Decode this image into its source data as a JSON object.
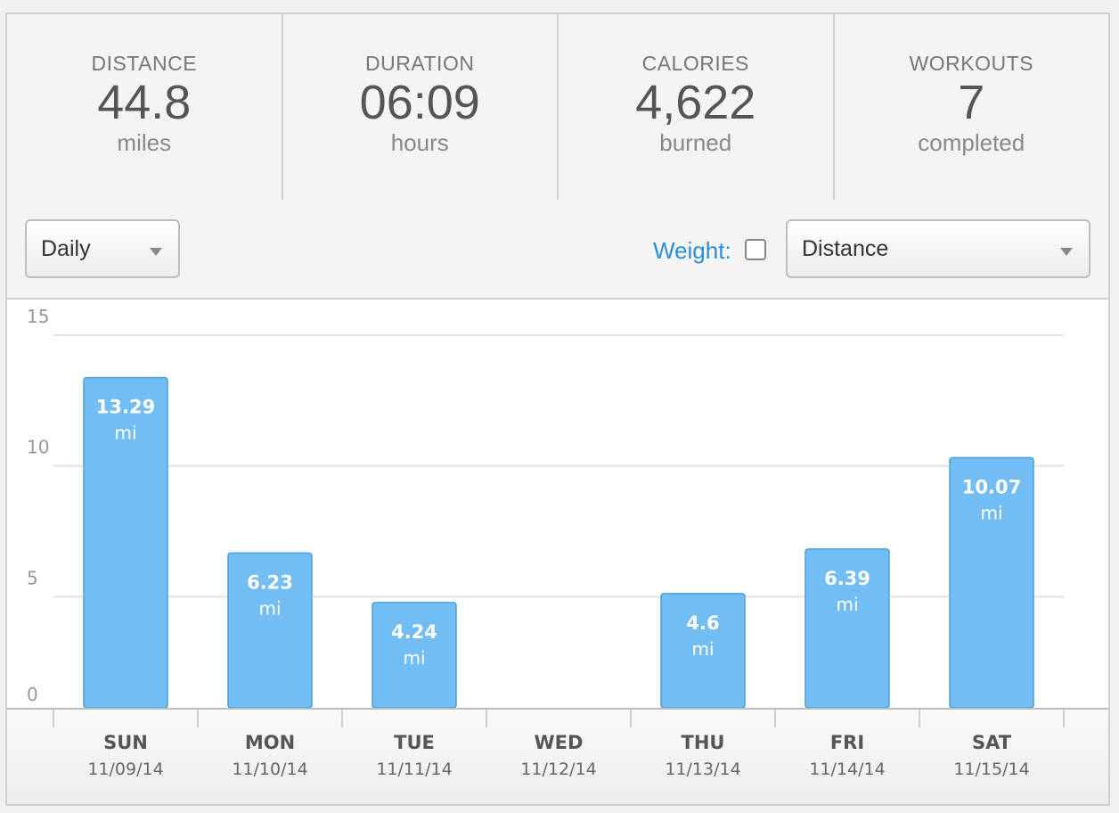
{
  "stats": [
    {
      "label": "DISTANCE",
      "value": "44.8",
      "unit": "miles"
    },
    {
      "label": "DURATION",
      "value": "06:09",
      "unit": "hours"
    },
    {
      "label": "CALORIES",
      "value": "4,622",
      "unit": "burned"
    },
    {
      "label": "WORKOUTS",
      "value": "7",
      "unit": "completed"
    }
  ],
  "controls": {
    "period": "Daily",
    "weight_label": "Weight:",
    "weight_checked": false,
    "metric": "Distance"
  },
  "chart_data": {
    "type": "bar",
    "categories": [
      "SUN",
      "MON",
      "TUE",
      "WED",
      "THU",
      "FRI",
      "SAT"
    ],
    "dates": [
      "11/09/14",
      "11/10/14",
      "11/11/14",
      "11/12/14",
      "11/13/14",
      "11/14/14",
      "11/15/14"
    ],
    "values": [
      13.29,
      6.23,
      4.24,
      0,
      4.6,
      6.39,
      10.07
    ],
    "value_labels": [
      "13.29",
      "6.23",
      "4.24",
      "",
      "4.6",
      "6.39",
      "10.07"
    ],
    "unit": "mi",
    "y_ticks": [
      0,
      5,
      10,
      15
    ],
    "ylim": [
      0,
      15
    ],
    "grid": true,
    "bar_color": "#72bdf4",
    "bar_border": "#4d9fda"
  }
}
